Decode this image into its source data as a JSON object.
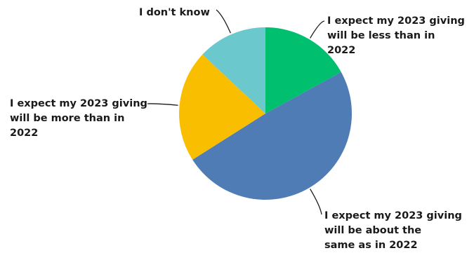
{
  "chart_data": {
    "type": "pie",
    "title": "",
    "start": "top",
    "direction": "clockwise",
    "slices": [
      {
        "label": "I expect my 2023 giving\nwill be less than in\n2022",
        "value": 17,
        "color": "#00bf6f"
      },
      {
        "label": "I expect my 2023 giving\nwill be about the\nsame as in 2022",
        "value": 49,
        "color": "#507cb6"
      },
      {
        "label": "I expect my 2023 giving\nwill be more than in\n2022",
        "value": 21,
        "color": "#f9be00"
      },
      {
        "label": "I don't know",
        "value": 13,
        "color": "#6bc8cd"
      }
    ]
  }
}
